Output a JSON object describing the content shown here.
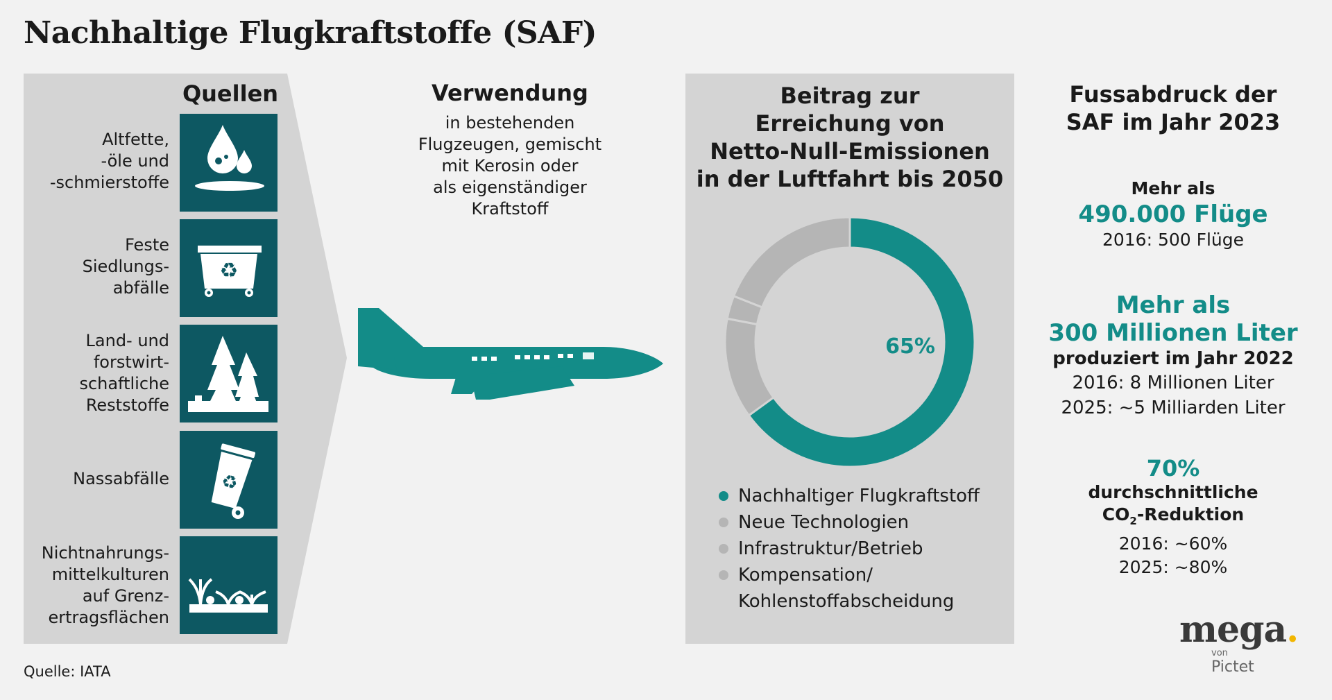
{
  "title": "Nachhaltige Flugkraftstoffe (SAF)",
  "sources": {
    "heading": "Quellen",
    "items": [
      {
        "l1": "Altfette,",
        "l2": "-öle und",
        "l3": "-schmierstoffe",
        "l4": "",
        "icon": "oil-drops-icon"
      },
      {
        "l1": "Feste",
        "l2": "Siedlungs-",
        "l3": "abfälle",
        "l4": "",
        "icon": "recycling-container-icon"
      },
      {
        "l1": "Land- und",
        "l2": "forstwirt-",
        "l3": "schaftliche",
        "l4": "Reststoffe",
        "icon": "forest-icon"
      },
      {
        "l1": "Nassabfälle",
        "l2": "",
        "l3": "",
        "l4": "",
        "icon": "recycling-bin-icon"
      },
      {
        "l1": "Nichtnahrungs-",
        "l2": "mittelkulturen",
        "l3": "auf Grenz-",
        "l4": "ertragsflächen",
        "icon": "crops-icon"
      }
    ]
  },
  "usage": {
    "heading": "Verwendung",
    "l1": "in bestehenden",
    "l2": "Flugzeugen, gemischt",
    "l3": "mit Kerosin oder",
    "l4": "als eigenständiger",
    "l5": "Kraftstoff"
  },
  "contribution": {
    "h1": "Beitrag zur",
    "h2": "Erreichung von",
    "h3": "Netto-Null-Emissionen",
    "h4": "in der Luftfahrt bis 2050"
  },
  "chart_data": {
    "type": "pie",
    "donut": true,
    "center_label": "65%",
    "slices": [
      {
        "label": "Nachhaltiger Flugkraftstoff",
        "value": 65,
        "color": "#138c88"
      },
      {
        "label": "Neue Technologien",
        "value": 13,
        "color": "#b5b5b5"
      },
      {
        "label": "Infrastruktur/Betrieb",
        "value": 3,
        "color": "#b5b5b5"
      },
      {
        "label": "Kompensation/ Kohlenstoffabscheidung",
        "value": 19,
        "color": "#b5b5b5"
      }
    ],
    "legend": [
      "Nachhaltiger Flugkraftstoff",
      "Neue Technologien",
      "Infrastruktur/Betrieb",
      "Kompensation/",
      "Kohlenstoffabscheidung"
    ]
  },
  "footprint": {
    "h1": "Fussabdruck der",
    "h2": "SAF im Jahr 2023",
    "flights_pre": "Mehr als",
    "flights_value": "490.000 Flüge",
    "flights_2016": "2016: 500 Flüge",
    "liters_pre": "Mehr als",
    "liters_value": "300 Millionen Liter",
    "liters_sub": "produziert im Jahr 2022",
    "liters_2016": "2016: 8 Millionen Liter",
    "liters_2025": "2025: ~5 Milliarden Liter",
    "co2_value": "70%",
    "co2_l1": "durchschnittliche",
    "co2_l2a": "CO",
    "co2_l2b": "2",
    "co2_l2c": "-Reduktion",
    "co2_2016": "2016: ~60%",
    "co2_2025": "2025: ~80%"
  },
  "logo": {
    "word": "mega",
    "von": "von",
    "brand": "Pictet",
    "accent": "#f2b600"
  },
  "source_note": "Quelle: IATA",
  "colors": {
    "teal": "#138c88",
    "dark_teal": "#0d5862",
    "grey": "#b5b5b5",
    "panel": "#d4d4d4"
  }
}
